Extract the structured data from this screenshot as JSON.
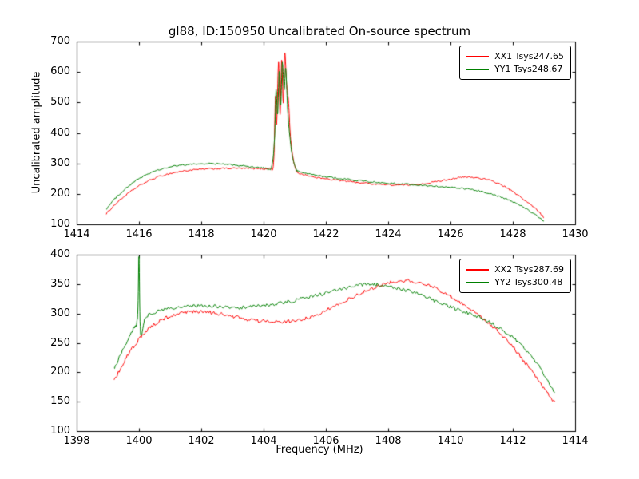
{
  "figure": {
    "title": "gl88, ID:150950 Uncalibrated On-source spectrum",
    "xlabel": "Frequency (MHz)",
    "ylabel": "Uncalibrated amplitude",
    "background": "#ffffff",
    "frame_color": "#000000"
  },
  "chart_data": [
    {
      "type": "line",
      "title": "gl88, ID:150950 Uncalibrated On-source spectrum",
      "xlabel": "",
      "ylabel": "Uncalibrated amplitude",
      "xlim": [
        1414,
        1430
      ],
      "ylim": [
        100,
        700
      ],
      "xticks": [
        1414,
        1416,
        1418,
        1420,
        1422,
        1424,
        1426,
        1428,
        1430
      ],
      "yticks": [
        100,
        200,
        300,
        400,
        500,
        600,
        700
      ],
      "grid": false,
      "legend_position": "upper right",
      "series": [
        {
          "name": "XX1 Tsys247.65",
          "color": "#ff0000",
          "noise": 2.5,
          "points": [
            [
              1414.95,
              135
            ],
            [
              1415.3,
              172
            ],
            [
              1415.7,
              205
            ],
            [
              1416.1,
              232
            ],
            [
              1416.6,
              255
            ],
            [
              1417.1,
              269
            ],
            [
              1417.6,
              277
            ],
            [
              1418.1,
              281
            ],
            [
              1418.6,
              283
            ],
            [
              1419.1,
              284
            ],
            [
              1419.6,
              283
            ],
            [
              1420.0,
              282
            ],
            [
              1420.2,
              284
            ],
            [
              1420.32,
              300
            ],
            [
              1420.38,
              520
            ],
            [
              1420.42,
              430
            ],
            [
              1420.48,
              630
            ],
            [
              1420.53,
              460
            ],
            [
              1420.58,
              640
            ],
            [
              1420.63,
              500
            ],
            [
              1420.68,
              660
            ],
            [
              1420.74,
              560
            ],
            [
              1420.8,
              505
            ],
            [
              1420.86,
              390
            ],
            [
              1420.94,
              320
            ],
            [
              1421.02,
              285
            ],
            [
              1421.12,
              268
            ],
            [
              1421.4,
              260
            ],
            [
              1421.8,
              252
            ],
            [
              1422.3,
              246
            ],
            [
              1422.8,
              240
            ],
            [
              1423.3,
              235
            ],
            [
              1423.8,
              231
            ],
            [
              1424.3,
              229
            ],
            [
              1424.8,
              230
            ],
            [
              1425.3,
              236
            ],
            [
              1425.8,
              245
            ],
            [
              1426.2,
              252
            ],
            [
              1426.5,
              255
            ],
            [
              1426.9,
              252
            ],
            [
              1427.3,
              243
            ],
            [
              1427.7,
              226
            ],
            [
              1428.1,
              200
            ],
            [
              1428.5,
              170
            ],
            [
              1428.8,
              145
            ],
            [
              1429.0,
              122
            ]
          ]
        },
        {
          "name": "YY1 Tsys248.67",
          "color": "#008000",
          "noise": 2.5,
          "points": [
            [
              1414.95,
              150
            ],
            [
              1415.3,
              192
            ],
            [
              1415.7,
              228
            ],
            [
              1416.1,
              256
            ],
            [
              1416.6,
              277
            ],
            [
              1417.1,
              290
            ],
            [
              1417.6,
              296
            ],
            [
              1418.1,
              299
            ],
            [
              1418.6,
              298
            ],
            [
              1419.1,
              294
            ],
            [
              1419.6,
              289
            ],
            [
              1420.0,
              285
            ],
            [
              1420.25,
              287
            ],
            [
              1420.35,
              380
            ],
            [
              1420.4,
              540
            ],
            [
              1420.45,
              460
            ],
            [
              1420.5,
              600
            ],
            [
              1420.55,
              490
            ],
            [
              1420.6,
              630
            ],
            [
              1420.66,
              540
            ],
            [
              1420.71,
              610
            ],
            [
              1420.77,
              480
            ],
            [
              1420.84,
              390
            ],
            [
              1420.92,
              325
            ],
            [
              1421.02,
              288
            ],
            [
              1421.12,
              274
            ],
            [
              1421.5,
              264
            ],
            [
              1422.0,
              256
            ],
            [
              1422.5,
              250
            ],
            [
              1423.0,
              244
            ],
            [
              1423.5,
              239
            ],
            [
              1424.0,
              235
            ],
            [
              1424.5,
              232
            ],
            [
              1425.0,
              229
            ],
            [
              1425.5,
              225
            ],
            [
              1426.0,
              221
            ],
            [
              1426.5,
              216
            ],
            [
              1427.0,
              208
            ],
            [
              1427.4,
              197
            ],
            [
              1427.8,
              183
            ],
            [
              1428.2,
              164
            ],
            [
              1428.6,
              140
            ],
            [
              1429.0,
              110
            ]
          ]
        }
      ]
    },
    {
      "type": "line",
      "title": "",
      "xlabel": "Frequency (MHz)",
      "ylabel": "",
      "xlim": [
        1398,
        1414
      ],
      "ylim": [
        100,
        400
      ],
      "xticks": [
        1398,
        1400,
        1402,
        1404,
        1406,
        1408,
        1410,
        1412,
        1414
      ],
      "yticks": [
        100,
        150,
        200,
        250,
        300,
        350,
        400
      ],
      "grid": false,
      "legend_position": "upper right",
      "series": [
        {
          "name": "XX2 Tsys287.69",
          "color": "#ff0000",
          "noise": 3.0,
          "points": [
            [
              1399.2,
              185
            ],
            [
              1399.5,
              216
            ],
            [
              1399.8,
              242
            ],
            [
              1400.1,
              262
            ],
            [
              1400.4,
              278
            ],
            [
              1400.8,
              291
            ],
            [
              1401.2,
              298
            ],
            [
              1401.6,
              302
            ],
            [
              1402.0,
              303
            ],
            [
              1402.4,
              301
            ],
            [
              1402.8,
              297
            ],
            [
              1403.2,
              293
            ],
            [
              1403.6,
              289
            ],
            [
              1404.0,
              287
            ],
            [
              1404.4,
              286
            ],
            [
              1404.8,
              287
            ],
            [
              1405.2,
              290
            ],
            [
              1405.6,
              296
            ],
            [
              1406.0,
              305
            ],
            [
              1406.4,
              315
            ],
            [
              1406.8,
              326
            ],
            [
              1407.2,
              336
            ],
            [
              1407.6,
              345
            ],
            [
              1408.0,
              352
            ],
            [
              1408.4,
              356
            ],
            [
              1408.8,
              355
            ],
            [
              1409.2,
              350
            ],
            [
              1409.6,
              341
            ],
            [
              1410.0,
              329
            ],
            [
              1410.4,
              316
            ],
            [
              1410.8,
              301
            ],
            [
              1411.2,
              285
            ],
            [
              1411.6,
              266
            ],
            [
              1412.0,
              243
            ],
            [
              1412.4,
              216
            ],
            [
              1412.8,
              188
            ],
            [
              1413.1,
              165
            ],
            [
              1413.35,
              148
            ]
          ]
        },
        {
          "name": "YY2 Tsys300.48",
          "color": "#008000",
          "noise": 3.0,
          "points": [
            [
              1399.2,
              205
            ],
            [
              1399.5,
              240
            ],
            [
              1399.8,
              272
            ],
            [
              1399.95,
              292
            ],
            [
              1400.0,
              395
            ],
            [
              1400.05,
              268
            ],
            [
              1400.2,
              292
            ],
            [
              1400.5,
              302
            ],
            [
              1400.9,
              308
            ],
            [
              1401.3,
              311
            ],
            [
              1401.7,
              313
            ],
            [
              1402.1,
              313
            ],
            [
              1402.5,
              312
            ],
            [
              1402.9,
              310
            ],
            [
              1403.3,
              310
            ],
            [
              1403.7,
              312
            ],
            [
              1404.1,
              314
            ],
            [
              1404.5,
              317
            ],
            [
              1404.9,
              321
            ],
            [
              1405.3,
              326
            ],
            [
              1405.7,
              331
            ],
            [
              1406.1,
              336
            ],
            [
              1406.5,
              341
            ],
            [
              1406.9,
              346
            ],
            [
              1407.2,
              349
            ],
            [
              1407.5,
              350
            ],
            [
              1407.8,
              348
            ],
            [
              1408.2,
              344
            ],
            [
              1408.6,
              339
            ],
            [
              1409.0,
              332
            ],
            [
              1409.4,
              324
            ],
            [
              1409.8,
              315
            ],
            [
              1410.2,
              307
            ],
            [
              1410.6,
              300
            ],
            [
              1411.0,
              292
            ],
            [
              1411.4,
              281
            ],
            [
              1411.8,
              267
            ],
            [
              1412.2,
              250
            ],
            [
              1412.6,
              227
            ],
            [
              1413.0,
              197
            ],
            [
              1413.35,
              165
            ]
          ]
        }
      ]
    }
  ]
}
